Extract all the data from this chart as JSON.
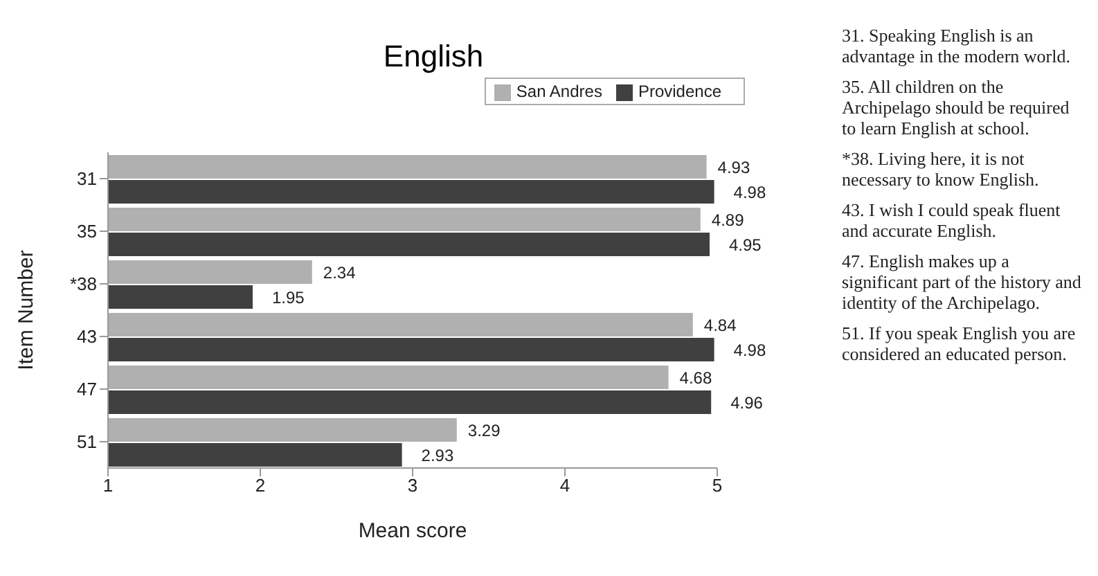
{
  "chart_data": {
    "type": "bar",
    "orientation": "horizontal",
    "title": "English",
    "xlabel": "Mean score",
    "ylabel": "Item Number",
    "categories": [
      "31",
      "35",
      "*38",
      "43",
      "47",
      "51"
    ],
    "series": [
      {
        "name": "San Andres",
        "color": "#b0b0b0",
        "values": [
          4.93,
          4.89,
          2.34,
          4.84,
          4.68,
          3.29
        ]
      },
      {
        "name": "Providence",
        "color": "#404040",
        "values": [
          4.98,
          4.95,
          1.95,
          4.98,
          4.96,
          2.93
        ]
      }
    ],
    "xlim": [
      1,
      5
    ],
    "xticks": [
      1,
      2,
      3,
      4,
      5
    ],
    "grid": false,
    "legend": "top right",
    "data_labels": true,
    "annotations": [
      "31. Speaking English is an advantage in the modern world.",
      "35. All children on the Archipelago should be required to learn English at school.",
      "*38. Living here, it is not necessary to know English.",
      "43. I wish I could speak fluent and accurate English.",
      "47. English makes up a significant part of the history and identity of the Archipelago.",
      "51. If you speak English you are considered an educated person."
    ]
  }
}
